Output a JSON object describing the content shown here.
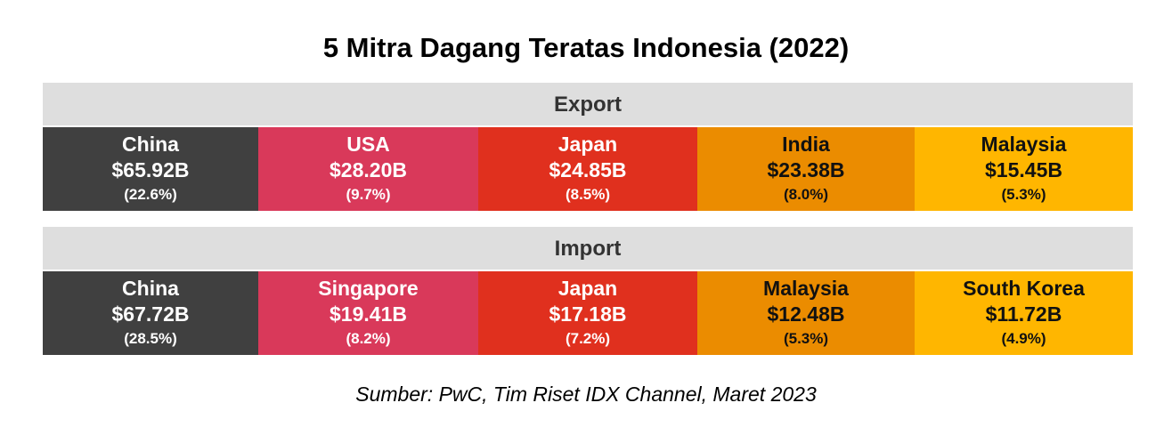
{
  "header": {
    "title": "5 Mitra Dagang Teratas Indonesia (2022)"
  },
  "sections": [
    {
      "title": "Export",
      "items": [
        {
          "name": "China",
          "value": "$65.92B",
          "share": "(22.6%)"
        },
        {
          "name": "USA",
          "value": "$28.20B",
          "share": "(9.7%)"
        },
        {
          "name": "Japan",
          "value": "$24.85B",
          "share": "(8.5%)"
        },
        {
          "name": "India",
          "value": "$23.38B",
          "share": "(8.0%)"
        },
        {
          "name": "Malaysia",
          "value": "$15.45B",
          "share": "(5.3%)"
        }
      ]
    },
    {
      "title": "Import",
      "items": [
        {
          "name": "China",
          "value": "$67.72B",
          "share": "(28.5%)"
        },
        {
          "name": "Singapore",
          "value": "$19.41B",
          "share": "(8.2%)"
        },
        {
          "name": "Japan",
          "value": "$17.18B",
          "share": "(7.2%)"
        },
        {
          "name": "Malaysia",
          "value": "$12.48B",
          "share": "(5.3%)"
        },
        {
          "name": "South Korea",
          "value": "$11.72B",
          "share": "(4.9%)"
        }
      ]
    }
  ],
  "footer": {
    "source": "Sumber: PwC, Tim Riset IDX Channel, Maret 2023"
  }
}
